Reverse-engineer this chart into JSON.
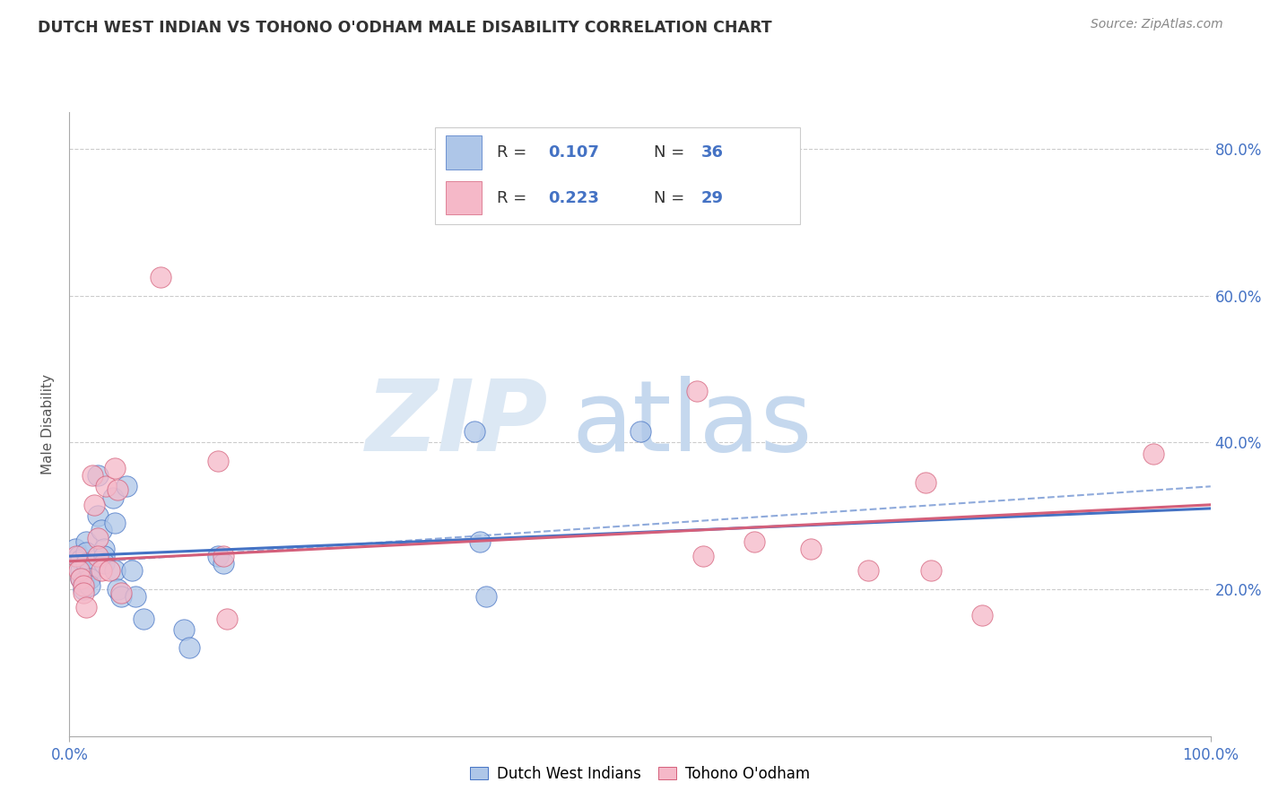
{
  "title": "DUTCH WEST INDIAN VS TOHONO O'ODHAM MALE DISABILITY CORRELATION CHART",
  "source": "Source: ZipAtlas.com",
  "ylabel": "Male Disability",
  "xlim": [
    0,
    1.0
  ],
  "ylim": [
    0,
    0.85
  ],
  "ytick_labels": [
    "20.0%",
    "40.0%",
    "60.0%",
    "80.0%"
  ],
  "ytick_values": [
    0.2,
    0.4,
    0.6,
    0.8
  ],
  "blue_color": "#aec6e8",
  "pink_color": "#f5b8c8",
  "line_blue": "#4472c4",
  "line_pink": "#d45f7a",
  "title_color": "#333333",
  "axis_label_color": "#4472c4",
  "background_color": "#ffffff",
  "blue_points": [
    [
      0.005,
      0.255
    ],
    [
      0.008,
      0.245
    ],
    [
      0.01,
      0.24
    ],
    [
      0.01,
      0.225
    ],
    [
      0.01,
      0.215
    ],
    [
      0.012,
      0.21
    ],
    [
      0.012,
      0.2
    ],
    [
      0.015,
      0.265
    ],
    [
      0.015,
      0.25
    ],
    [
      0.015,
      0.235
    ],
    [
      0.018,
      0.225
    ],
    [
      0.018,
      0.215
    ],
    [
      0.018,
      0.205
    ],
    [
      0.025,
      0.355
    ],
    [
      0.025,
      0.3
    ],
    [
      0.028,
      0.28
    ],
    [
      0.03,
      0.255
    ],
    [
      0.03,
      0.245
    ],
    [
      0.03,
      0.235
    ],
    [
      0.038,
      0.325
    ],
    [
      0.04,
      0.29
    ],
    [
      0.04,
      0.225
    ],
    [
      0.042,
      0.2
    ],
    [
      0.045,
      0.19
    ],
    [
      0.05,
      0.34
    ],
    [
      0.055,
      0.225
    ],
    [
      0.058,
      0.19
    ],
    [
      0.065,
      0.16
    ],
    [
      0.1,
      0.145
    ],
    [
      0.105,
      0.12
    ],
    [
      0.13,
      0.245
    ],
    [
      0.135,
      0.235
    ],
    [
      0.355,
      0.415
    ],
    [
      0.36,
      0.265
    ],
    [
      0.365,
      0.19
    ],
    [
      0.5,
      0.415
    ]
  ],
  "pink_points": [
    [
      0.006,
      0.245
    ],
    [
      0.008,
      0.225
    ],
    [
      0.01,
      0.215
    ],
    [
      0.012,
      0.205
    ],
    [
      0.012,
      0.195
    ],
    [
      0.015,
      0.175
    ],
    [
      0.02,
      0.355
    ],
    [
      0.022,
      0.315
    ],
    [
      0.025,
      0.27
    ],
    [
      0.025,
      0.245
    ],
    [
      0.028,
      0.225
    ],
    [
      0.032,
      0.34
    ],
    [
      0.035,
      0.225
    ],
    [
      0.04,
      0.365
    ],
    [
      0.042,
      0.335
    ],
    [
      0.045,
      0.195
    ],
    [
      0.08,
      0.625
    ],
    [
      0.13,
      0.375
    ],
    [
      0.135,
      0.245
    ],
    [
      0.138,
      0.16
    ],
    [
      0.55,
      0.47
    ],
    [
      0.555,
      0.245
    ],
    [
      0.6,
      0.265
    ],
    [
      0.65,
      0.255
    ],
    [
      0.7,
      0.225
    ],
    [
      0.75,
      0.345
    ],
    [
      0.755,
      0.225
    ],
    [
      0.8,
      0.165
    ],
    [
      0.95,
      0.385
    ]
  ],
  "blue_line_x": [
    0.0,
    1.0
  ],
  "blue_line_y": [
    0.245,
    0.31
  ],
  "pink_line_x": [
    0.0,
    1.0
  ],
  "pink_line_y": [
    0.238,
    0.315
  ],
  "dash_line_x": [
    0.0,
    1.0
  ],
  "dash_line_y": [
    0.235,
    0.34
  ]
}
